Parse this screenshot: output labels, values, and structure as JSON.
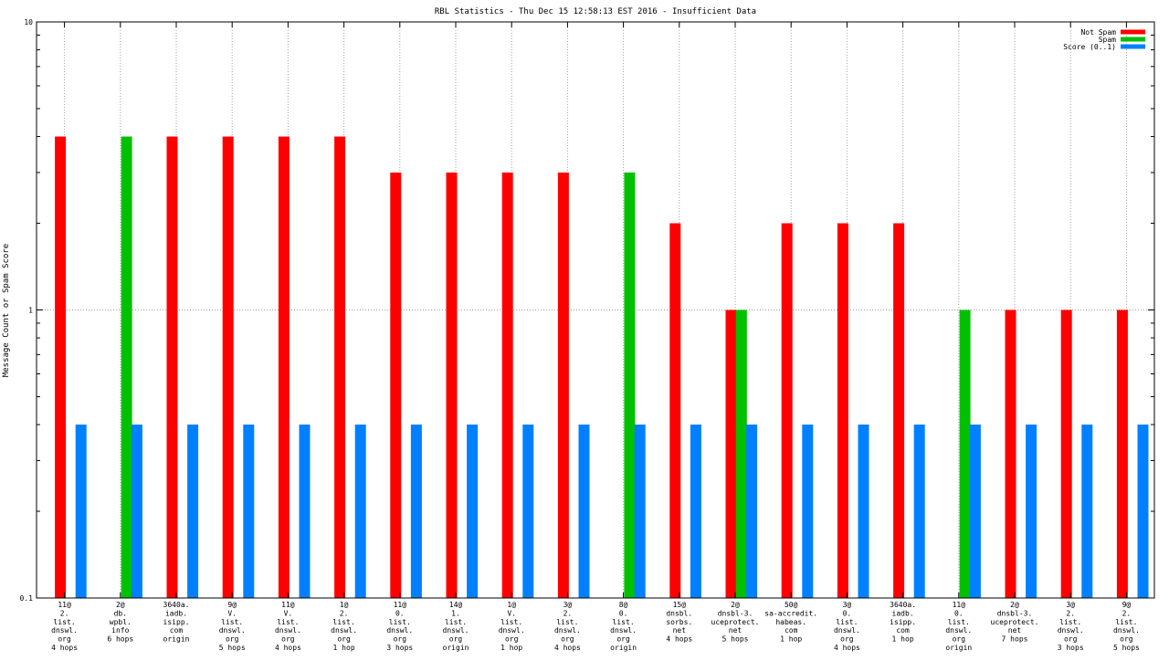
{
  "chart_data": {
    "type": "bar",
    "title": "RBL Statistics - Thu Dec 15 12:58:13 EST 2016 - Insufficient Data",
    "ylabel": "Message Count or Spam Score",
    "xlabel": "",
    "y_scale": "log",
    "ylim": [
      0.1,
      10
    ],
    "y_tick_labels": [
      "0.1",
      "1",
      "10"
    ],
    "grid": true,
    "legend_position": "top-right",
    "categories": [
      [
        "11@",
        "2.",
        "list.",
        "dnswl.",
        "org",
        "4 hops"
      ],
      [
        "2@",
        "db.",
        "wpbl.",
        "info",
        "6 hops"
      ],
      [
        "3640a.",
        "iadb.",
        "isipp.",
        "com",
        "origin"
      ],
      [
        "9@",
        "V.",
        "list.",
        "dnswl.",
        "org",
        "5 hops"
      ],
      [
        "11@",
        "V.",
        "list.",
        "dnswl.",
        "org",
        "4 hops"
      ],
      [
        "1@",
        "2.",
        "list.",
        "dnswl.",
        "org",
        "1 hop"
      ],
      [
        "11@",
        "0.",
        "list.",
        "dnswl.",
        "org",
        "3 hops"
      ],
      [
        "14@",
        "1.",
        "list.",
        "dnswl.",
        "org",
        "origin"
      ],
      [
        "1@",
        "V.",
        "list.",
        "dnswl.",
        "org",
        "1 hop"
      ],
      [
        "3@",
        "2.",
        "list.",
        "dnswl.",
        "org",
        "4 hops"
      ],
      [
        "8@",
        "0.",
        "list.",
        "dnswl.",
        "org",
        "origin"
      ],
      [
        "15@",
        "dnsbl.",
        "sorbs.",
        "net",
        "4 hops"
      ],
      [
        "2@",
        "dnsbl-3.",
        "uceprotect.",
        "net",
        "5 hops"
      ],
      [
        "50@",
        "sa-accredit.",
        "habeas.",
        "com",
        "1 hop"
      ],
      [
        "3@",
        "0.",
        "list.",
        "dnswl.",
        "org",
        "4 hops"
      ],
      [
        "3640a.",
        "iadb.",
        "isipp.",
        "com",
        "1 hop"
      ],
      [
        "11@",
        "0.",
        "list.",
        "dnswl.",
        "org",
        "origin"
      ],
      [
        "2@",
        "dnsbl-3.",
        "uceprotect.",
        "net",
        "7 hops"
      ],
      [
        "3@",
        "2.",
        "list.",
        "dnswl.",
        "org",
        "3 hops"
      ],
      [
        "9@",
        "2.",
        "list.",
        "dnswl.",
        "org",
        "5 hops"
      ]
    ],
    "series": [
      {
        "name": "Not Spam",
        "color": "#ff0000",
        "values": [
          4,
          0,
          4,
          4,
          4,
          4,
          3,
          3,
          3,
          3,
          0,
          2,
          1,
          2,
          2,
          2,
          0,
          1,
          1,
          1
        ]
      },
      {
        "name": "Spam",
        "color": "#00c000",
        "values": [
          0,
          4,
          0,
          0,
          0,
          0,
          0,
          0,
          0,
          0,
          3,
          0,
          1,
          0,
          0,
          0,
          1,
          0,
          0,
          0
        ]
      },
      {
        "name": "Score (0..1)",
        "color": "#0080ff",
        "values": [
          0.4,
          0.4,
          0.4,
          0.4,
          0.4,
          0.4,
          0.4,
          0.4,
          0.4,
          0.4,
          0.4,
          0.4,
          0.4,
          0.4,
          0.4,
          0.4,
          0.4,
          0.4,
          0.4,
          0.4
        ]
      }
    ]
  }
}
